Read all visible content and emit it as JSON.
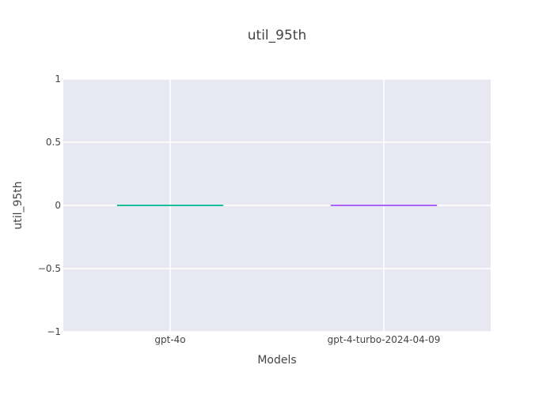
{
  "chart_data": {
    "type": "box",
    "title": "util_95th",
    "xlabel": "Models",
    "ylabel": "util_95th",
    "categories": [
      "gpt-4o",
      "gpt-4-turbo-2024-04-09"
    ],
    "y_ticks": [
      "1",
      "0.5",
      "0",
      "−0.5",
      "−1"
    ],
    "y_tick_values": [
      1,
      0.5,
      0,
      -0.5,
      -1
    ],
    "ylim": [
      -1,
      1
    ],
    "series": [
      {
        "category": "gpt-4o",
        "min": 0,
        "q1": 0,
        "median": 0,
        "q3": 0,
        "max": 0
      },
      {
        "category": "gpt-4-turbo-2024-04-09",
        "min": 0,
        "q1": 0,
        "median": 0,
        "q3": 0,
        "max": 0
      }
    ],
    "colors": [
      "#1cbe9c",
      "#ab63fa"
    ],
    "plot_bg": "#e5e5f0",
    "grid": true
  }
}
